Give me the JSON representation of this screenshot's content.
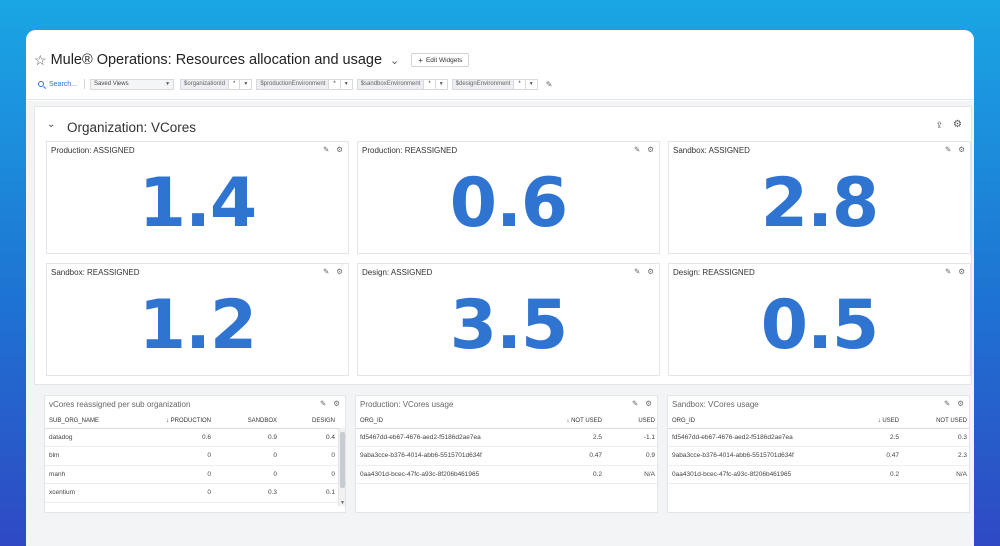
{
  "header": {
    "title": "Mule® Operations: Resources allocation and usage",
    "edit_widgets_label": "Edit Widgets",
    "search_label": "Search...",
    "saved_views": "Saved Views",
    "variables": [
      {
        "name": "$organizationId",
        "value": "*"
      },
      {
        "name": "$productionEnvironment",
        "value": "*"
      },
      {
        "name": "$sandboxEnvironment",
        "value": "*"
      },
      {
        "name": "$designEnvironment",
        "value": "*"
      }
    ]
  },
  "group": {
    "title": "Organization: VCores"
  },
  "query_values": [
    {
      "title": "Production: ASSIGNED",
      "value": "1.4"
    },
    {
      "title": "Production: REASSIGNED",
      "value": "0.6"
    },
    {
      "title": "Sandbox: ASSIGNED",
      "value": "2.8"
    },
    {
      "title": "Sandbox: REASSIGNED",
      "value": "1.2"
    },
    {
      "title": "Design: ASSIGNED",
      "value": "3.5"
    },
    {
      "title": "Design: REASSIGNED",
      "value": "0.5"
    }
  ],
  "reassigned_table": {
    "title": "vCores reassigned per sub organization",
    "columns": [
      "SUB_ORG_NAME",
      "PRODUCTION",
      "SANDBOX",
      "DESIGN"
    ],
    "rows": [
      [
        "datadog",
        "0.6",
        "0.9",
        "0.4"
      ],
      [
        "blm",
        "0",
        "0",
        "0"
      ],
      [
        "manh",
        "0",
        "0",
        "0"
      ],
      [
        "xcentium",
        "0",
        "0.3",
        "0.1"
      ]
    ]
  },
  "production_table": {
    "title": "Production: VCores usage",
    "columns": [
      "ORG_ID",
      "NOT USED",
      "USED"
    ],
    "rows": [
      [
        "fd5467dd-eb67-4676-aed2-f5186d2ae7ea",
        "2.5",
        "-1.1"
      ],
      [
        "9aba3cce-b376-4014-abb6-5515701d634f",
        "0.47",
        "0.9"
      ],
      [
        "0aa4301d-bcec-47fc-a93c-8f206b461965",
        "0.2",
        "N/A"
      ]
    ]
  },
  "sandbox_table": {
    "title": "Sandbox: VCores usage",
    "columns": [
      "ORG_ID",
      "USED",
      "NOT USED"
    ],
    "rows": [
      [
        "fd5467dd-eb67-4676-aed2-f5186d2ae7ea",
        "2.5",
        "0.3"
      ],
      [
        "9aba3cce-b376-4014-abb6-5515701d634f",
        "0.47",
        "2.3"
      ],
      [
        "0aa4301d-bcec-47fc-a93c-8f206b461965",
        "0.2",
        "N/A"
      ]
    ]
  },
  "colors": {
    "accent": "#2f74d0",
    "background_top": "#1aa6e4",
    "background_bottom": "#2f49c4"
  }
}
